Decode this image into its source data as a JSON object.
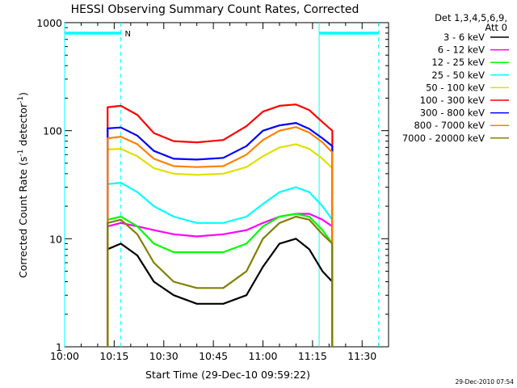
{
  "chart_data": {
    "type": "line",
    "title": "HESSI Observing Summary Count Rates, Corrected",
    "xlabel": "Start Time (29-Dec-10 09:59:22)",
    "ylabel_main": "Corrected Count Rate (s",
    "ylabel_sup1": "-1",
    "ylabel_mid": " detector",
    "ylabel_sup2": "-1",
    "ylabel_end": ")",
    "yscale": "log",
    "xlim": [
      "10:00",
      "11:38"
    ],
    "ylim": [
      1,
      1000
    ],
    "x_ticks": [
      "10:00",
      "10:15",
      "10:30",
      "10:45",
      "11:00",
      "11:15",
      "11:30"
    ],
    "y_ticks": [
      "1",
      "10",
      "100",
      "1000"
    ],
    "legend_header1": "Det 1,3,4,5,6,9,",
    "legend_header2": "Att 0",
    "legend_position": "right",
    "timestamp": "29-Dec-2010 07:54",
    "flag_label": "N",
    "night_intervals": [
      [
        "10:00",
        "10:17"
      ],
      [
        "11:17",
        "11:35"
      ]
    ],
    "series": [
      {
        "name": "3 - 6 keV",
        "color": "#000000",
        "x": [
          "10:13",
          "10:17",
          "10:22",
          "10:27",
          "10:33",
          "10:40",
          "10:48",
          "10:55",
          "11:00",
          "11:05",
          "11:10",
          "11:14",
          "11:18",
          "11:21"
        ],
        "values": [
          8,
          9,
          7,
          4,
          3,
          2.5,
          2.5,
          3,
          5.5,
          9,
          10,
          8,
          5,
          4
        ]
      },
      {
        "name": "6 - 12 keV",
        "color": "#ff00ff",
        "x": [
          "10:13",
          "10:17",
          "10:22",
          "10:27",
          "10:33",
          "10:40",
          "10:48",
          "10:55",
          "11:00",
          "11:05",
          "11:10",
          "11:14",
          "11:18",
          "11:21"
        ],
        "values": [
          13,
          14,
          13,
          12,
          11,
          10.5,
          11,
          12,
          14,
          16,
          17,
          17,
          15,
          13
        ]
      },
      {
        "name": "12 - 25 keV",
        "color": "#00ff00",
        "x": [
          "10:13",
          "10:17",
          "10:22",
          "10:27",
          "10:33",
          "10:40",
          "10:48",
          "10:55",
          "11:00",
          "11:05",
          "11:10",
          "11:14",
          "11:18",
          "11:21"
        ],
        "values": [
          15,
          16,
          13,
          9,
          7.5,
          7.5,
          7.5,
          9,
          13,
          16,
          17,
          16,
          12,
          9
        ]
      },
      {
        "name": "25 - 50 keV",
        "color": "#00ffff",
        "x": [
          "10:13",
          "10:17",
          "10:22",
          "10:27",
          "10:33",
          "10:40",
          "10:48",
          "10:55",
          "11:00",
          "11:05",
          "11:10",
          "11:14",
          "11:18",
          "11:21"
        ],
        "values": [
          32,
          33,
          27,
          20,
          16,
          14,
          14,
          16,
          21,
          27,
          30,
          27,
          20,
          15
        ]
      },
      {
        "name": "50 - 100 keV",
        "color": "#e0e000",
        "x": [
          "10:13",
          "10:17",
          "10:22",
          "10:27",
          "10:33",
          "10:40",
          "10:48",
          "10:55",
          "11:00",
          "11:05",
          "11:10",
          "11:14",
          "11:18",
          "11:21"
        ],
        "values": [
          67,
          68,
          58,
          45,
          40,
          39,
          40,
          46,
          58,
          70,
          75,
          68,
          55,
          45
        ]
      },
      {
        "name": "100 - 300 keV",
        "color": "#ff0000",
        "x": [
          "10:13",
          "10:17",
          "10:22",
          "10:27",
          "10:33",
          "10:40",
          "10:48",
          "10:55",
          "11:00",
          "11:05",
          "11:10",
          "11:14",
          "11:18",
          "11:21"
        ],
        "values": [
          165,
          170,
          140,
          95,
          80,
          78,
          82,
          110,
          150,
          170,
          175,
          155,
          120,
          100
        ]
      },
      {
        "name": "300 - 800 keV",
        "color": "#0000ff",
        "x": [
          "10:13",
          "10:17",
          "10:22",
          "10:27",
          "10:33",
          "10:40",
          "10:48",
          "10:55",
          "11:00",
          "11:05",
          "11:10",
          "11:14",
          "11:18",
          "11:21"
        ],
        "values": [
          105,
          107,
          90,
          65,
          55,
          54,
          56,
          72,
          100,
          112,
          118,
          104,
          85,
          72
        ]
      },
      {
        "name": "800 - 7000 keV",
        "color": "#ff8000",
        "x": [
          "10:13",
          "10:17",
          "10:22",
          "10:27",
          "10:33",
          "10:40",
          "10:48",
          "10:55",
          "11:00",
          "11:05",
          "11:10",
          "11:14",
          "11:18",
          "11:21"
        ],
        "values": [
          85,
          88,
          75,
          55,
          47,
          46,
          47,
          60,
          82,
          100,
          108,
          96,
          78,
          63
        ]
      },
      {
        "name": "7000 - 20000 keV",
        "color": "#808000",
        "x": [
          "10:13",
          "10:17",
          "10:22",
          "10:27",
          "10:33",
          "10:40",
          "10:48",
          "10:55",
          "11:00",
          "11:05",
          "11:10",
          "11:14",
          "11:18",
          "11:21"
        ],
        "values": [
          14,
          15,
          11,
          6,
          4,
          3.5,
          3.5,
          5,
          10,
          14,
          16,
          15,
          11,
          9
        ]
      }
    ]
  }
}
